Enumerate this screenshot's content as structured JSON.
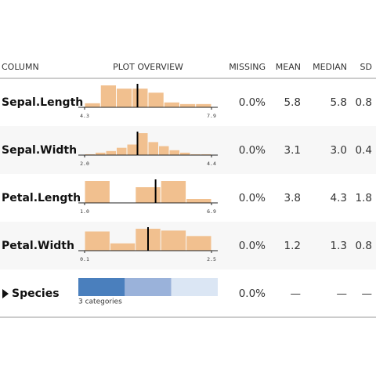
{
  "header": [
    "COLUMN",
    "PLOT OVERVIEW",
    "MISSING",
    "MEAN",
    "MEDIAN",
    "SD"
  ],
  "rows": [
    {
      "name": "Sepal.Length",
      "plot": {
        "axis": [
          {
            "value": 4.3,
            "label": "4.3"
          },
          {
            "value": 7.9,
            "label": "7.9"
          }
        ],
        "counts": [
          5,
          27,
          23,
          23,
          18,
          6,
          4,
          4
        ],
        "median": 5.8
      },
      "missing": "0.0%",
      "mean": "5.8",
      "median": "5.8",
      "sd": "0.8"
    },
    {
      "name": "Sepal.Width",
      "plot": {
        "axis": [
          {
            "value": 2.0,
            "label": "2.0"
          },
          {
            "value": 4.4,
            "label": "4.4"
          }
        ],
        "counts": [
          1,
          3,
          5,
          9,
          13,
          27,
          16,
          11,
          6,
          3,
          1,
          1
        ],
        "median": 3.0
      },
      "missing": "0.0%",
      "mean": "3.1",
      "median": "3.0",
      "sd": "0.4"
    },
    {
      "name": "Petal.Length",
      "plot": {
        "axis": [
          {
            "value": 1.0,
            "label": "1.0"
          },
          {
            "value": 6.9,
            "label": "6.9"
          }
        ],
        "counts": [
          28,
          0,
          20,
          28,
          5
        ],
        "median": 4.3
      },
      "missing": "0.0%",
      "mean": "3.8",
      "median": "4.3",
      "sd": "1.8"
    },
    {
      "name": "Petal.Width",
      "plot": {
        "axis": [
          {
            "value": 0.1,
            "label": "0.1"
          },
          {
            "value": 2.5,
            "label": "2.5"
          }
        ],
        "counts": [
          21,
          8,
          24,
          22,
          16
        ],
        "median": 1.3
      },
      "missing": "0.0%",
      "mean": "1.2",
      "median": "1.3",
      "sd": "0.8"
    }
  ],
  "species": {
    "name": "Species",
    "shares": [
      50,
      50,
      50
    ],
    "colors": [
      "#4a7fbd",
      "#9ab2da",
      "#dbe6f4"
    ],
    "caption": "3 categories",
    "missing": "0.0%",
    "mean": "—",
    "median": "—",
    "sd": "—"
  }
}
